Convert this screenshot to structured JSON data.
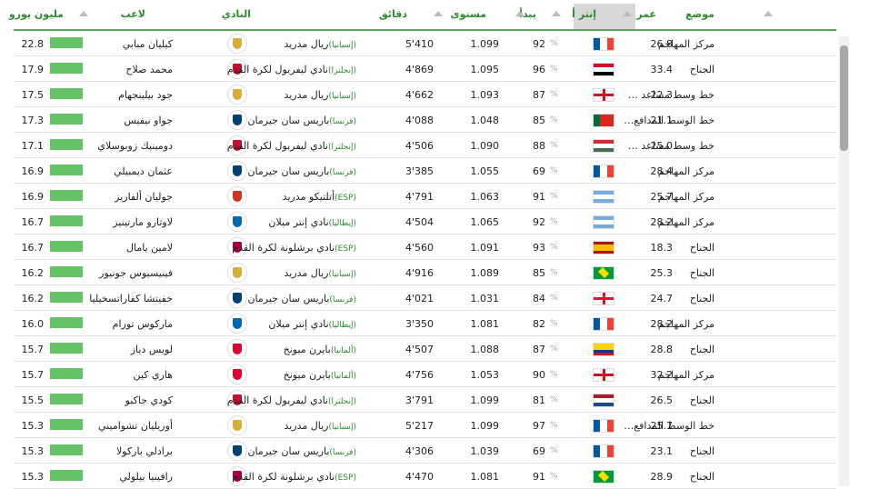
{
  "table": {
    "headers": [
      "مليون يورو",
      "لاعب",
      "النادي",
      "دقائق",
      "مستوى",
      "يبدأ",
      "إنتر أ",
      "عمر",
      "موضع"
    ],
    "percent_sign": "%",
    "rows": [
      {
        "value": "22.8",
        "player": "كيليان مبابي",
        "club": "ريال مدريد",
        "league": "(إسبانيا)",
        "crest": "#d4af37",
        "minutes": "5'410",
        "level": "1.099",
        "starts": "92",
        "flag": {
          "dir": "v",
          "colors": [
            "#0055a4",
            "#ffffff",
            "#ef4135"
          ]
        },
        "age": "26.8",
        "position": "مركز المهاجم"
      },
      {
        "value": "17.9",
        "player": "محمد صلاح",
        "club": "نادي ليفربول لكرة القدم",
        "league": "(إنجلترا)",
        "crest": "#c8102e",
        "minutes": "4'869",
        "level": "1.095",
        "starts": "96",
        "flag": {
          "dir": "h",
          "colors": [
            "#ce1126",
            "#ffffff",
            "#000000"
          ]
        },
        "age": "33.4",
        "position": "الجناح"
      },
      {
        "value": "17.5",
        "player": "جود بيلينجهام",
        "club": "ريال مدريد",
        "league": "(إسبانيا)",
        "crest": "#d4af37",
        "minutes": "4'662",
        "level": "1.093",
        "starts": "87",
        "flag": {
          "dir": "cross",
          "colors": [
            "#ffffff",
            "#ce1124"
          ]
        },
        "age": "22.3",
        "position": "خط وسط مساعد …"
      },
      {
        "value": "17.3",
        "player": "جواو نيفيس",
        "club": "باريس سان جيرمان",
        "league": "(فرنسا)",
        "crest": "#004170",
        "minutes": "4'088",
        "level": "1.048",
        "starts": "85",
        "flag": {
          "dir": "v",
          "colors": [
            "#046a38",
            "#da291c",
            "#da291c"
          ]
        },
        "age": "21.1",
        "position": "خط الوسط المدافع…"
      },
      {
        "value": "17.1",
        "player": "دومينيك زوبوسلاي",
        "club": "نادي ليفربول لكرة القدم",
        "league": "(إنجلترا)",
        "crest": "#c8102e",
        "minutes": "4'506",
        "level": "1.090",
        "starts": "88",
        "flag": {
          "dir": "h",
          "colors": [
            "#ce2939",
            "#ffffff",
            "#477050"
          ]
        },
        "age": "25.0",
        "position": "خط وسط مساعد …"
      },
      {
        "value": "16.9",
        "player": "عثمان ديمبيلي",
        "club": "باريس سان جيرمان",
        "league": "(فرنسا)",
        "crest": "#004170",
        "minutes": "3'385",
        "level": "1.055",
        "starts": "69",
        "flag": {
          "dir": "v",
          "colors": [
            "#0055a4",
            "#ffffff",
            "#ef4135"
          ]
        },
        "age": "28.4",
        "position": "مركز المهاجم"
      },
      {
        "value": "16.9",
        "player": "جوليان ألفاريز",
        "club": "أتلتيكو مدريد",
        "league": "(ESP)",
        "crest": "#cb3524",
        "minutes": "4'791",
        "level": "1.063",
        "starts": "91",
        "flag": {
          "dir": "h",
          "colors": [
            "#74acdf",
            "#ffffff",
            "#74acdf"
          ]
        },
        "age": "25.7",
        "position": "مركز المهاجم"
      },
      {
        "value": "16.7",
        "player": "لاوتارو مارتينيز",
        "club": "نادي إنتر ميلان",
        "league": "(إيطاليا)",
        "crest": "#0068a8",
        "minutes": "4'504",
        "level": "1.065",
        "starts": "92",
        "flag": {
          "dir": "h",
          "colors": [
            "#74acdf",
            "#ffffff",
            "#74acdf"
          ]
        },
        "age": "28.2",
        "position": "مركز المهاجم"
      },
      {
        "value": "16.7",
        "player": "لامين يامال",
        "club": "نادي برشلونة لكرة القدم",
        "league": "(ESP)",
        "crest": "#a50044",
        "minutes": "4'560",
        "level": "1.091",
        "starts": "93",
        "flag": {
          "dir": "h",
          "colors": [
            "#aa151b",
            "#f1bf00",
            "#f1bf00",
            "#aa151b"
          ]
        },
        "age": "18.3",
        "position": "الجناح"
      },
      {
        "value": "16.2",
        "player": "فينيسيوس جونيور",
        "club": "ريال مدريد",
        "league": "(إسبانيا)",
        "crest": "#d4af37",
        "minutes": "4'916",
        "level": "1.089",
        "starts": "85",
        "flag": {
          "dir": "diamond",
          "colors": [
            "#009c3b",
            "#ffdf00"
          ]
        },
        "age": "25.3",
        "position": "الجناح"
      },
      {
        "value": "16.2",
        "player": "خفيتشا كفاراتسخيليا",
        "club": "باريس سان جيرمان",
        "league": "(فرنسا)",
        "crest": "#004170",
        "minutes": "4'021",
        "level": "1.031",
        "starts": "84",
        "flag": {
          "dir": "cross",
          "colors": [
            "#ffffff",
            "#e8112d"
          ]
        },
        "age": "24.7",
        "position": "الجناح"
      },
      {
        "value": "16.0",
        "player": "ماركوس تورام",
        "club": "نادي إنتر ميلان",
        "league": "(إيطاليا)",
        "crest": "#0068a8",
        "minutes": "3'350",
        "level": "1.081",
        "starts": "82",
        "flag": {
          "dir": "v",
          "colors": [
            "#0055a4",
            "#ffffff",
            "#ef4135"
          ]
        },
        "age": "28.2",
        "position": "مركز المهاجم"
      },
      {
        "value": "15.7",
        "player": "لويس دياز",
        "club": "بايرن ميونخ",
        "league": "(ألمانيا)",
        "crest": "#dc052d",
        "minutes": "4'507",
        "level": "1.088",
        "starts": "87",
        "flag": {
          "dir": "h",
          "colors": [
            "#fcd116",
            "#fcd116",
            "#003893",
            "#ce1126"
          ]
        },
        "age": "28.8",
        "position": "الجناح"
      },
      {
        "value": "15.7",
        "player": "هاري كين",
        "club": "بايرن ميونخ",
        "league": "(ألمانيا)",
        "crest": "#dc052d",
        "minutes": "4'756",
        "level": "1.053",
        "starts": "90",
        "flag": {
          "dir": "cross",
          "colors": [
            "#ffffff",
            "#ce1124"
          ]
        },
        "age": "32.2",
        "position": "مركز المهاجم"
      },
      {
        "value": "15.5",
        "player": "كودي جاكبو",
        "club": "نادي ليفربول لكرة القدم",
        "league": "(إنجلترا)",
        "crest": "#c8102e",
        "minutes": "3'791",
        "level": "1.099",
        "starts": "81",
        "flag": {
          "dir": "h",
          "colors": [
            "#ae1c28",
            "#ffffff",
            "#21468b"
          ]
        },
        "age": "26.5",
        "position": "الجناح"
      },
      {
        "value": "15.3",
        "player": "أوريليان تشواميني",
        "club": "ريال مدريد",
        "league": "(إسبانيا)",
        "crest": "#d4af37",
        "minutes": "5'217",
        "level": "1.099",
        "starts": "97",
        "flag": {
          "dir": "v",
          "colors": [
            "#0055a4",
            "#ffffff",
            "#ef4135"
          ]
        },
        "age": "25.7",
        "position": "خط الوسط المدافع…"
      },
      {
        "value": "15.3",
        "player": "برادلي باركولا",
        "club": "باريس سان جيرمان",
        "league": "(فرنسا)",
        "crest": "#004170",
        "minutes": "4'306",
        "level": "1.039",
        "starts": "69",
        "flag": {
          "dir": "v",
          "colors": [
            "#0055a4",
            "#ffffff",
            "#ef4135"
          ]
        },
        "age": "23.1",
        "position": "الجناح"
      },
      {
        "value": "15.3",
        "player": "رافينيا بيلولي",
        "club": "نادي برشلونة لكرة القدم",
        "league": "(ESP)",
        "crest": "#a50044",
        "minutes": "4'470",
        "level": "1.081",
        "starts": "91",
        "flag": {
          "dir": "diamond",
          "colors": [
            "#009c3b",
            "#ffdf00"
          ]
        },
        "age": "28.9",
        "position": "الجناح"
      }
    ]
  }
}
